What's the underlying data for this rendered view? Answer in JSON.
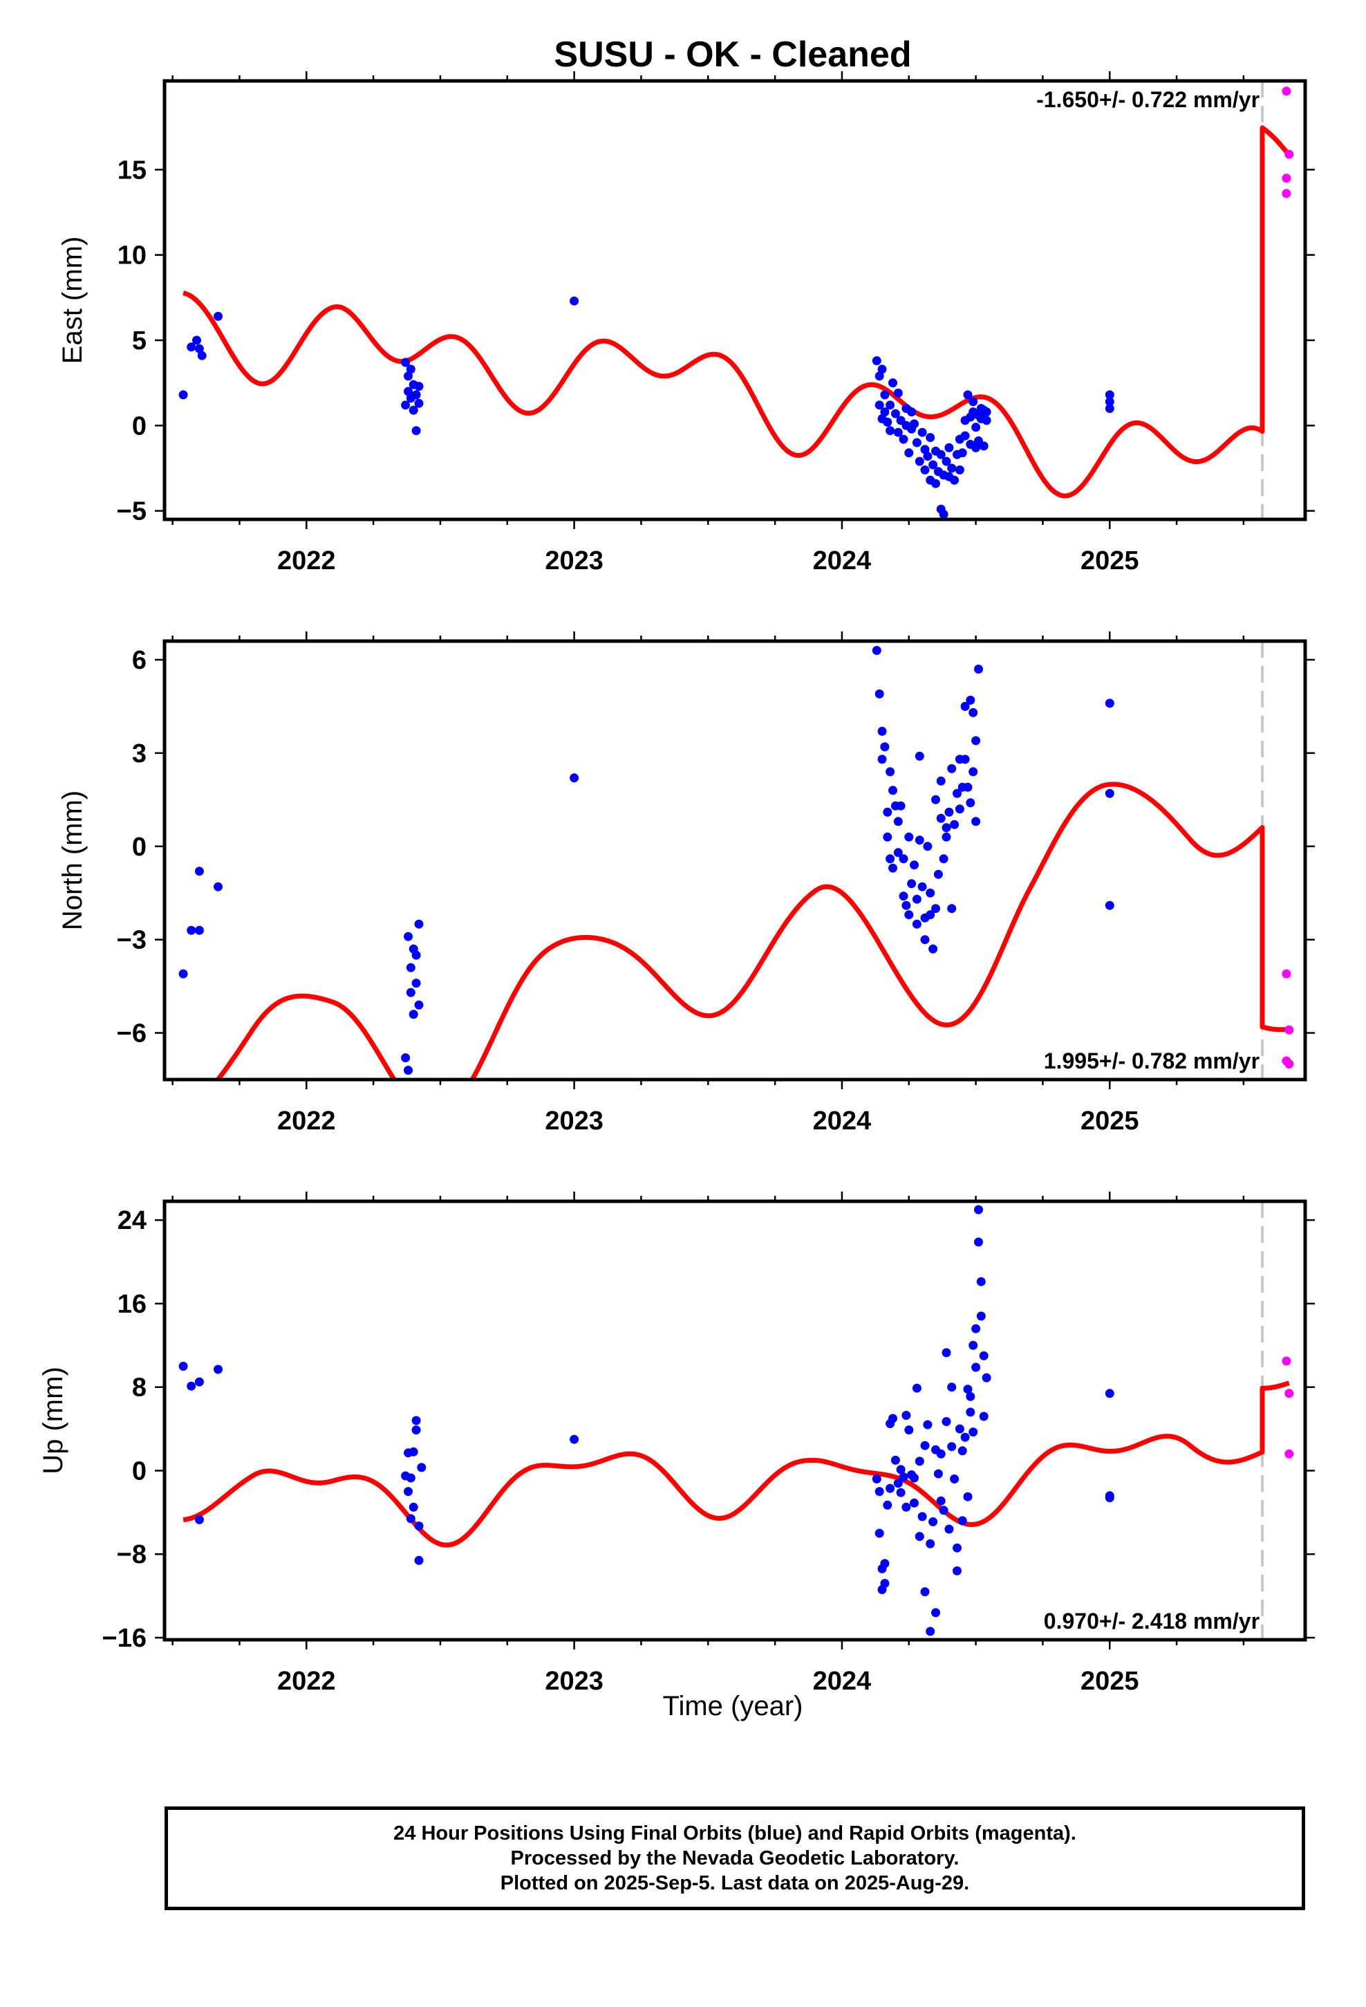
{
  "title": "SUSU  - OK - Cleaned",
  "xlabel": "Time (year)",
  "footer": {
    "line1": "24 Hour Positions Using Final Orbits (blue) and Rapid Orbits (magenta).",
    "line2": "Processed by the Nevada Geodetic Laboratory.",
    "line3": "Plotted on 2025-Sep-5. Last data on 2025-Aug-29."
  },
  "colors": {
    "final_points": "#0000ff",
    "rapid_points": "#ff00ff",
    "model_line": "#ff0000",
    "break_line": "#c8c8c8"
  },
  "chart_data": [
    {
      "type": "scatter",
      "component": "east",
      "ylabel": "East (mm)",
      "rate_text": "-1.650+/- 0.722 mm/yr",
      "rate_position": "top-right",
      "xlim": [
        2021.47,
        2025.73
      ],
      "ylim": [
        -5.5,
        20.2
      ],
      "yticks": [
        -5,
        0,
        5,
        10,
        15
      ],
      "yticklabels": [
        "−5",
        "0",
        "5",
        "10",
        "15"
      ],
      "xticks": [
        2022,
        2023,
        2024,
        2025
      ],
      "xticklabels": [
        "2022",
        "2023",
        "2024",
        "2025"
      ],
      "equipment_change": 2025.57,
      "model": {
        "name": "model",
        "offset": 0.2,
        "rate": -1.65,
        "a1": 1.5,
        "b1": -1.0,
        "a2": 1.25,
        "b2": 0.85,
        "spline_x": [
          2021.54,
          2021.8,
          2022.1,
          2022.4,
          2022.9,
          2023.4,
          2023.9,
          2024.3,
          2024.7,
          2025.0,
          2025.3,
          2025.57
        ],
        "spline_y": [
          2.4,
          2.8,
          2.9,
          1.2,
          2.8,
          2.1,
          1.9,
          1.4,
          1.1,
          1.3,
          0.4,
          1.1
        ],
        "jump": 17.4,
        "post_offset": 17.45
      },
      "final_points": [
        [
          2021.54,
          1.8
        ],
        [
          2021.57,
          4.6
        ],
        [
          2021.59,
          5.0
        ],
        [
          2021.6,
          4.5
        ],
        [
          2021.61,
          4.1
        ],
        [
          2021.67,
          6.4
        ],
        [
          2022.37,
          1.2
        ],
        [
          2022.37,
          3.7
        ],
        [
          2022.38,
          2.9
        ],
        [
          2022.38,
          2.0
        ],
        [
          2022.39,
          3.3
        ],
        [
          2022.39,
          1.6
        ],
        [
          2022.4,
          2.4
        ],
        [
          2022.4,
          0.9
        ],
        [
          2022.41,
          1.8
        ],
        [
          2022.41,
          -0.3
        ],
        [
          2022.42,
          1.3
        ],
        [
          2022.42,
          2.3
        ],
        [
          2023.0,
          7.3
        ],
        [
          2024.13,
          3.8
        ],
        [
          2024.14,
          2.9
        ],
        [
          2024.14,
          1.2
        ],
        [
          2024.15,
          0.4
        ],
        [
          2024.15,
          3.3
        ],
        [
          2024.16,
          1.8
        ],
        [
          2024.16,
          0.8
        ],
        [
          2024.17,
          0.2
        ],
        [
          2024.18,
          1.2
        ],
        [
          2024.18,
          -0.3
        ],
        [
          2024.19,
          2.5
        ],
        [
          2024.2,
          0.7
        ],
        [
          2024.21,
          -0.4
        ],
        [
          2024.21,
          1.9
        ],
        [
          2024.22,
          0.3
        ],
        [
          2024.23,
          -0.8
        ],
        [
          2024.24,
          1.0
        ],
        [
          2024.24,
          0.0
        ],
        [
          2024.25,
          -1.6
        ],
        [
          2024.26,
          0.8
        ],
        [
          2024.26,
          -0.2
        ],
        [
          2024.27,
          0.1
        ],
        [
          2024.28,
          -1.0
        ],
        [
          2024.29,
          -2.1
        ],
        [
          2024.3,
          -0.4
        ],
        [
          2024.31,
          -1.4
        ],
        [
          2024.31,
          -2.6
        ],
        [
          2024.32,
          -1.8
        ],
        [
          2024.33,
          -0.7
        ],
        [
          2024.33,
          -3.2
        ],
        [
          2024.34,
          -2.3
        ],
        [
          2024.35,
          -1.5
        ],
        [
          2024.35,
          -3.4
        ],
        [
          2024.36,
          -2.7
        ],
        [
          2024.37,
          -4.9
        ],
        [
          2024.37,
          -1.7
        ],
        [
          2024.38,
          -2.9
        ],
        [
          2024.38,
          -5.2
        ],
        [
          2024.39,
          -2.1
        ],
        [
          2024.4,
          -3.0
        ],
        [
          2024.4,
          -1.3
        ],
        [
          2024.41,
          -2.5
        ],
        [
          2024.42,
          -3.2
        ],
        [
          2024.43,
          -1.7
        ],
        [
          2024.44,
          -0.8
        ],
        [
          2024.44,
          -2.6
        ],
        [
          2024.45,
          -1.6
        ],
        [
          2024.46,
          -0.6
        ],
        [
          2024.46,
          0.3
        ],
        [
          2024.47,
          1.8
        ],
        [
          2024.48,
          0.5
        ],
        [
          2024.48,
          -1.1
        ],
        [
          2024.49,
          1.4
        ],
        [
          2024.49,
          0.8
        ],
        [
          2024.5,
          -0.1
        ],
        [
          2024.5,
          -1.3
        ],
        [
          2024.51,
          0.6
        ],
        [
          2024.51,
          -0.9
        ],
        [
          2024.52,
          1.0
        ],
        [
          2024.52,
          0.4
        ],
        [
          2024.53,
          0.9
        ],
        [
          2024.53,
          -1.2
        ],
        [
          2024.54,
          0.8
        ],
        [
          2024.54,
          0.3
        ],
        [
          2025.0,
          1.0
        ],
        [
          2025.0,
          1.4
        ],
        [
          2025.0,
          1.8
        ]
      ],
      "rapid_points": [
        [
          2025.66,
          19.6
        ],
        [
          2025.67,
          15.9
        ],
        [
          2025.66,
          14.5
        ],
        [
          2025.66,
          13.6
        ]
      ]
    },
    {
      "type": "scatter",
      "component": "north",
      "ylabel": "North (mm)",
      "rate_text": "1.995+/- 0.782 mm/yr",
      "rate_position": "bottom-right",
      "xlim": [
        2021.47,
        2025.73
      ],
      "ylim": [
        -7.5,
        6.6
      ],
      "yticks": [
        -6,
        -3,
        0,
        3,
        6
      ],
      "yticklabels": [
        "−6",
        "−3",
        "0",
        "3",
        "6"
      ],
      "xticks": [
        2022,
        2023,
        2024,
        2025
      ],
      "xticklabels": [
        "2022",
        "2023",
        "2024",
        "2025"
      ],
      "equipment_change": 2025.57,
      "model": {
        "name": "model",
        "offset": -3.0,
        "rate": 1.995,
        "a1": 0.0,
        "b1": 1.9,
        "a2": -0.1,
        "b2": -0.2,
        "spline_x": [
          2021.54,
          2021.8,
          2022.1,
          2022.4,
          2022.9,
          2023.4,
          2023.9,
          2024.3,
          2024.7,
          2025.0,
          2025.3,
          2025.57
        ],
        "spline_y": [
          0.4,
          -0.3,
          -0.6,
          -1.6,
          -0.7,
          -0.3,
          -0.8,
          -3.5,
          -0.3,
          0.3,
          0.0,
          1.4
        ],
        "jump": -11.4,
        "post_offset": -5.8
      },
      "final_points": [
        [
          2021.54,
          -4.1
        ],
        [
          2021.57,
          -2.7
        ],
        [
          2021.6,
          -0.8
        ],
        [
          2021.6,
          -2.7
        ],
        [
          2021.67,
          -1.3
        ],
        [
          2022.37,
          -6.8
        ],
        [
          2022.38,
          -7.2
        ],
        [
          2022.38,
          -2.9
        ],
        [
          2022.39,
          -3.9
        ],
        [
          2022.39,
          -4.7
        ],
        [
          2022.4,
          -3.3
        ],
        [
          2022.4,
          -5.4
        ],
        [
          2022.41,
          -4.4
        ],
        [
          2022.41,
          -3.5
        ],
        [
          2022.42,
          -5.1
        ],
        [
          2022.42,
          -2.5
        ],
        [
          2023.0,
          2.2
        ],
        [
          2024.13,
          6.3
        ],
        [
          2024.14,
          4.9
        ],
        [
          2024.15,
          2.8
        ],
        [
          2024.15,
          3.7
        ],
        [
          2024.16,
          3.2
        ],
        [
          2024.17,
          1.1
        ],
        [
          2024.17,
          0.3
        ],
        [
          2024.18,
          -0.4
        ],
        [
          2024.18,
          2.4
        ],
        [
          2024.19,
          1.8
        ],
        [
          2024.19,
          -0.7
        ],
        [
          2024.2,
          1.3
        ],
        [
          2024.21,
          -0.2
        ],
        [
          2024.21,
          0.8
        ],
        [
          2024.22,
          1.3
        ],
        [
          2024.23,
          -1.6
        ],
        [
          2024.23,
          -0.4
        ],
        [
          2024.24,
          -1.9
        ],
        [
          2024.25,
          0.3
        ],
        [
          2024.25,
          -2.2
        ],
        [
          2024.26,
          -1.2
        ],
        [
          2024.27,
          -0.6
        ],
        [
          2024.28,
          -2.5
        ],
        [
          2024.28,
          -1.7
        ],
        [
          2024.29,
          0.2
        ],
        [
          2024.29,
          2.9
        ],
        [
          2024.3,
          -1.3
        ],
        [
          2024.31,
          -2.3
        ],
        [
          2024.31,
          -3.0
        ],
        [
          2024.32,
          0.0
        ],
        [
          2024.33,
          -2.2
        ],
        [
          2024.33,
          -1.5
        ],
        [
          2024.34,
          -3.3
        ],
        [
          2024.35,
          -2.0
        ],
        [
          2024.35,
          1.5
        ],
        [
          2024.36,
          -0.9
        ],
        [
          2024.37,
          0.9
        ],
        [
          2024.37,
          2.1
        ],
        [
          2024.38,
          -0.4
        ],
        [
          2024.39,
          0.3
        ],
        [
          2024.39,
          0.6
        ],
        [
          2024.4,
          1.1
        ],
        [
          2024.41,
          -2.0
        ],
        [
          2024.41,
          2.5
        ],
        [
          2024.42,
          0.7
        ],
        [
          2024.43,
          1.7
        ],
        [
          2024.44,
          2.8
        ],
        [
          2024.44,
          1.2
        ],
        [
          2024.45,
          1.9
        ],
        [
          2024.46,
          2.8
        ],
        [
          2024.46,
          4.5
        ],
        [
          2024.47,
          1.9
        ],
        [
          2024.48,
          4.7
        ],
        [
          2024.48,
          1.4
        ],
        [
          2024.49,
          2.4
        ],
        [
          2024.49,
          4.3
        ],
        [
          2024.5,
          0.8
        ],
        [
          2024.5,
          3.4
        ],
        [
          2024.51,
          5.7
        ],
        [
          2025.0,
          4.6
        ],
        [
          2025.0,
          1.7
        ],
        [
          2025.0,
          -1.9
        ]
      ],
      "rapid_points": [
        [
          2025.66,
          -4.1
        ],
        [
          2025.66,
          -6.9
        ],
        [
          2025.67,
          -7.0
        ],
        [
          2025.67,
          -5.9
        ]
      ]
    },
    {
      "type": "scatter",
      "component": "up",
      "ylabel": "Up (mm)",
      "rate_text": "0.970+/- 2.418 mm/yr",
      "rate_position": "bottom-right",
      "xlim": [
        2021.47,
        2025.73
      ],
      "ylim": [
        -16.2,
        25.8
      ],
      "yticks": [
        -16,
        -8,
        0,
        8,
        16,
        24
      ],
      "yticklabels": [
        "−16",
        "−8",
        "0",
        "8",
        "16",
        "24"
      ],
      "xticks": [
        2022,
        2023,
        2024,
        2025
      ],
      "xticklabels": [
        "2022",
        "2023",
        "2024",
        "2025"
      ],
      "equipment_change": 2025.57,
      "model": {
        "name": "model",
        "offset": -1.0,
        "rate": 0.97,
        "a1": 0.8,
        "b1": 2.8,
        "a2": -0.5,
        "b2": -1.2,
        "spline_x": [
          2021.54,
          2021.8,
          2022.1,
          2022.4,
          2022.9,
          2023.4,
          2023.9,
          2024.3,
          2024.7,
          2025.0,
          2025.3,
          2025.57
        ],
        "spline_y": [
          2.4,
          0.8,
          -0.5,
          -1.2,
          0.2,
          0.8,
          -0.3,
          -3.0,
          0.8,
          -0.2,
          0.5,
          4.8
        ],
        "jump": 0.0,
        "post_offset": 7.9
      },
      "final_points": [
        [
          2021.54,
          10.0
        ],
        [
          2021.57,
          8.1
        ],
        [
          2021.6,
          8.5
        ],
        [
          2021.6,
          -4.7
        ],
        [
          2021.67,
          9.7
        ],
        [
          2022.37,
          -0.5
        ],
        [
          2022.38,
          -2.0
        ],
        [
          2022.38,
          1.7
        ],
        [
          2022.39,
          -4.6
        ],
        [
          2022.39,
          -0.7
        ],
        [
          2022.4,
          -3.5
        ],
        [
          2022.4,
          1.8
        ],
        [
          2022.41,
          4.8
        ],
        [
          2022.41,
          3.9
        ],
        [
          2022.42,
          -8.6
        ],
        [
          2022.42,
          -5.3
        ],
        [
          2022.43,
          0.3
        ],
        [
          2023.0,
          3.0
        ],
        [
          2024.13,
          -0.8
        ],
        [
          2024.14,
          -2.0
        ],
        [
          2024.14,
          -6.0
        ],
        [
          2024.15,
          -9.4
        ],
        [
          2024.15,
          -11.4
        ],
        [
          2024.16,
          -8.9
        ],
        [
          2024.16,
          -10.8
        ],
        [
          2024.17,
          -3.3
        ],
        [
          2024.18,
          4.5
        ],
        [
          2024.18,
          -1.7
        ],
        [
          2024.19,
          5.0
        ],
        [
          2024.2,
          1.0
        ],
        [
          2024.21,
          -1.2
        ],
        [
          2024.22,
          0.1
        ],
        [
          2024.22,
          -2.1
        ],
        [
          2024.23,
          -0.6
        ],
        [
          2024.24,
          5.3
        ],
        [
          2024.24,
          -3.5
        ],
        [
          2024.25,
          3.9
        ],
        [
          2024.26,
          -0.4
        ],
        [
          2024.27,
          -3.1
        ],
        [
          2024.27,
          -0.7
        ],
        [
          2024.28,
          7.9
        ],
        [
          2024.29,
          0.9
        ],
        [
          2024.29,
          -6.3
        ],
        [
          2024.3,
          -4.4
        ],
        [
          2024.31,
          -11.6
        ],
        [
          2024.31,
          2.4
        ],
        [
          2024.32,
          4.4
        ],
        [
          2024.33,
          -15.4
        ],
        [
          2024.33,
          -7.0
        ],
        [
          2024.34,
          -4.9
        ],
        [
          2024.35,
          -13.6
        ],
        [
          2024.35,
          2.0
        ],
        [
          2024.36,
          -0.3
        ],
        [
          2024.37,
          -2.9
        ],
        [
          2024.37,
          1.6
        ],
        [
          2024.38,
          -3.8
        ],
        [
          2024.39,
          4.7
        ],
        [
          2024.39,
          11.3
        ],
        [
          2024.4,
          -5.6
        ],
        [
          2024.41,
          2.3
        ],
        [
          2024.41,
          8.0
        ],
        [
          2024.42,
          -0.8
        ],
        [
          2024.43,
          -7.4
        ],
        [
          2024.43,
          -9.6
        ],
        [
          2024.44,
          4.0
        ],
        [
          2024.45,
          1.9
        ],
        [
          2024.45,
          -4.8
        ],
        [
          2024.46,
          3.2
        ],
        [
          2024.47,
          7.8
        ],
        [
          2024.47,
          -2.5
        ],
        [
          2024.48,
          7.1
        ],
        [
          2024.48,
          5.6
        ],
        [
          2024.49,
          12.0
        ],
        [
          2024.49,
          3.7
        ],
        [
          2024.5,
          9.9
        ],
        [
          2024.5,
          13.6
        ],
        [
          2024.51,
          25.0
        ],
        [
          2024.51,
          21.9
        ],
        [
          2024.52,
          14.8
        ],
        [
          2024.52,
          18.1
        ],
        [
          2024.53,
          11.0
        ],
        [
          2024.53,
          5.2
        ],
        [
          2024.54,
          8.9
        ],
        [
          2025.0,
          7.4
        ],
        [
          2025.0,
          -2.4
        ],
        [
          2025.0,
          -2.6
        ]
      ],
      "rapid_points": [
        [
          2025.66,
          10.5
        ],
        [
          2025.67,
          7.4
        ],
        [
          2025.67,
          1.6
        ]
      ]
    }
  ]
}
